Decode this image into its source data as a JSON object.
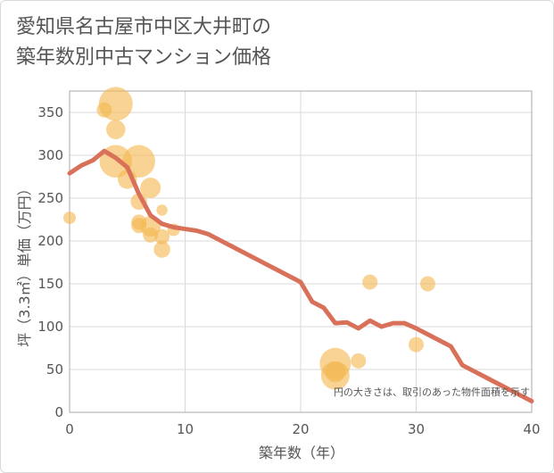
{
  "chart_data": {
    "type": "scatter",
    "title_line1": "愛知県名古屋市中区大井町の",
    "title_line2": "築年数別中古マンション価格",
    "xlabel": "築年数（年）",
    "ylabel": "坪（3.3㎡）単価（万円）",
    "xlim": [
      0,
      40
    ],
    "ylim": [
      0,
      375
    ],
    "x_ticks": [
      0,
      10,
      20,
      30,
      40
    ],
    "y_ticks": [
      0,
      50,
      100,
      150,
      200,
      250,
      300,
      350
    ],
    "grid": true,
    "note": "円の大きさは、取引のあった物件面積を示す",
    "colors": {
      "bubble": "#f4b850",
      "trend": "#d9705a",
      "grid": "#d9d9d9",
      "plot_border": "#aaaaaa"
    },
    "bubbles": [
      {
        "x": 0,
        "y": 227,
        "size": 0.2
      },
      {
        "x": 3,
        "y": 353,
        "size": 0.3
      },
      {
        "x": 4,
        "y": 360,
        "size": 1.0
      },
      {
        "x": 4,
        "y": 330,
        "size": 0.45
      },
      {
        "x": 4,
        "y": 293,
        "size": 0.95
      },
      {
        "x": 5,
        "y": 272,
        "size": 0.45
      },
      {
        "x": 6,
        "y": 293,
        "size": 0.95
      },
      {
        "x": 6,
        "y": 246,
        "size": 0.35
      },
      {
        "x": 6,
        "y": 222,
        "size": 0.3
      },
      {
        "x": 6,
        "y": 218,
        "size": 0.3
      },
      {
        "x": 7,
        "y": 262,
        "size": 0.5
      },
      {
        "x": 7,
        "y": 217,
        "size": 0.5
      },
      {
        "x": 7,
        "y": 207,
        "size": 0.3
      },
      {
        "x": 8,
        "y": 236,
        "size": 0.15
      },
      {
        "x": 8,
        "y": 205,
        "size": 0.3
      },
      {
        "x": 8,
        "y": 190,
        "size": 0.35
      },
      {
        "x": 9,
        "y": 213,
        "size": 0.2
      },
      {
        "x": 23,
        "y": 57,
        "size": 0.9
      },
      {
        "x": 23,
        "y": 47,
        "size": 0.5
      },
      {
        "x": 23,
        "y": 43,
        "size": 0.8
      },
      {
        "x": 25,
        "y": 60,
        "size": 0.3
      },
      {
        "x": 26,
        "y": 152,
        "size": 0.3
      },
      {
        "x": 30,
        "y": 79,
        "size": 0.3
      },
      {
        "x": 31,
        "y": 150,
        "size": 0.3
      }
    ],
    "trend": {
      "x": [
        0,
        1,
        2,
        3,
        4,
        5,
        6,
        7,
        8,
        9,
        10,
        11,
        12,
        13,
        14,
        15,
        16,
        17,
        18,
        19,
        20,
        21,
        22,
        23,
        24,
        25,
        26,
        27,
        28,
        29,
        30,
        31,
        32,
        33,
        34,
        35,
        36,
        37,
        38,
        39,
        40
      ],
      "y": [
        279,
        288,
        294,
        305,
        297,
        286,
        255,
        230,
        220,
        216,
        214,
        212,
        208,
        201,
        194,
        187,
        180,
        173,
        166,
        159,
        152,
        129,
        122,
        104,
        105,
        98,
        107,
        100,
        104,
        104,
        98,
        91,
        84,
        77,
        55,
        48,
        41,
        34,
        27,
        20,
        13
      ]
    }
  }
}
